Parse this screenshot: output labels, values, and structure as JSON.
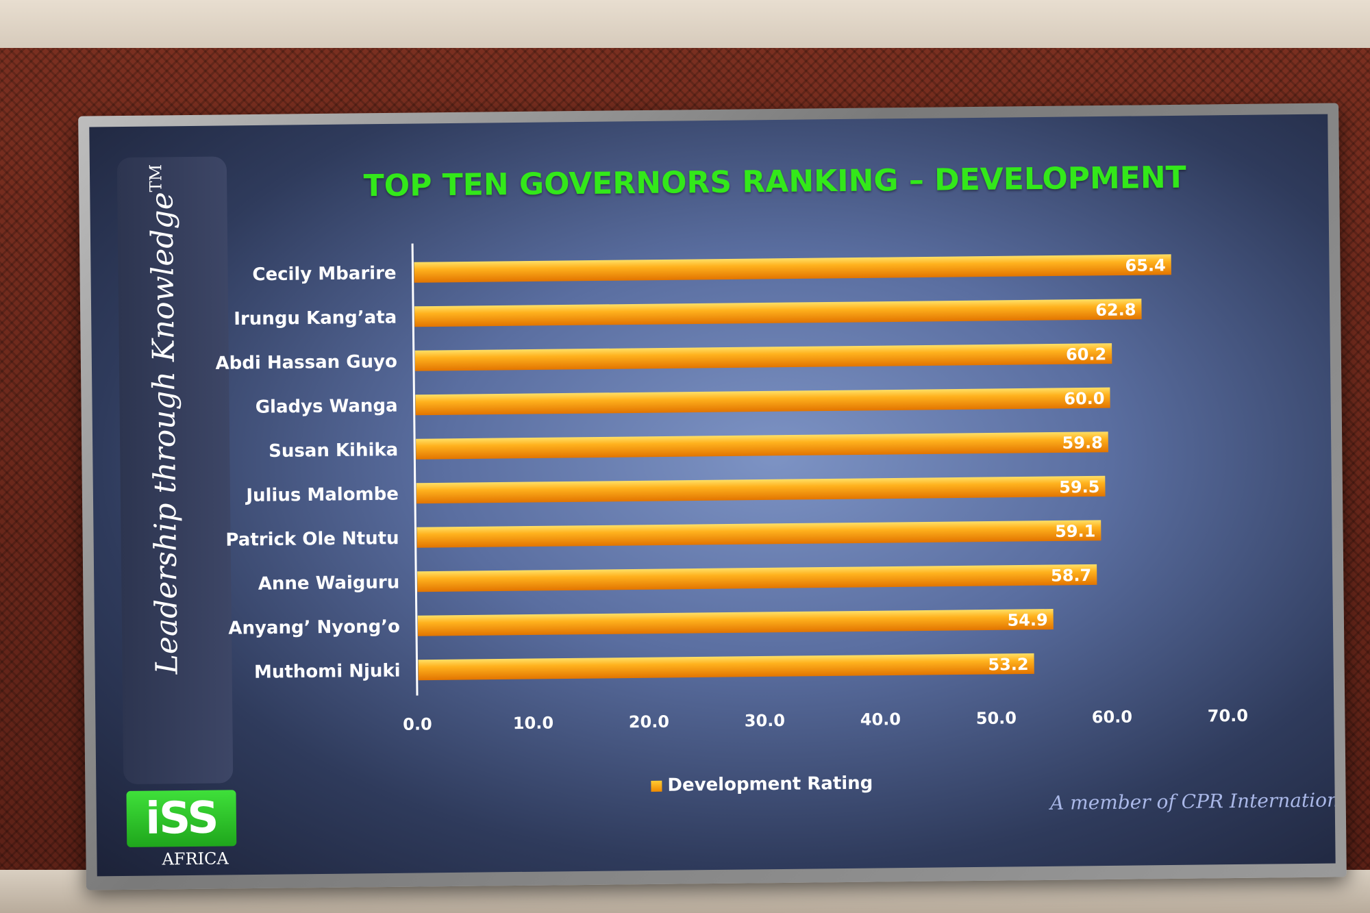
{
  "chart_data": {
    "type": "bar",
    "orientation": "horizontal",
    "title": "TOP TEN GOVERNORS RANKING – DEVELOPMENT",
    "categories": [
      "Cecily Mbarire",
      "Irungu Kang’ata",
      "Abdi Hassan Guyo",
      "Gladys Wanga",
      "Susan Kihika",
      "Julius Malombe",
      "Patrick Ole Ntutu",
      "Anne Waiguru",
      "Anyang’ Nyong’o",
      "Muthomi Njuki"
    ],
    "series": [
      {
        "name": "Development Rating",
        "values": [
          65.4,
          62.8,
          60.2,
          60.0,
          59.8,
          59.5,
          59.1,
          58.7,
          54.9,
          53.2
        ]
      }
    ],
    "value_labels": [
      "65.4",
      "62.8",
      "60.2",
      "60.0",
      "59.8",
      "59.5",
      "59.1",
      "58.7",
      "54.9",
      "53.2"
    ],
    "xlim": [
      0,
      70
    ],
    "x_ticks": [
      "0.0",
      "10.0",
      "20.0",
      "30.0",
      "40.0",
      "50.0",
      "60.0",
      "70.0"
    ],
    "x_tick_values": [
      0,
      10,
      20,
      30,
      40,
      50,
      60,
      70
    ],
    "legend_position": "bottom",
    "grid": false,
    "bar_color": "#f59b12"
  },
  "branding": {
    "tagline": "Leadership through Knowledge",
    "tagline_mark": "TM",
    "logo_text": "iSS",
    "logo_sub": "AFRICA",
    "member_text": "A member of CPR International"
  }
}
